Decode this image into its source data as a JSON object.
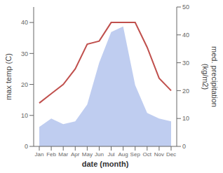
{
  "chart_data": {
    "type": "line",
    "categories": [
      "Jan",
      "Feb",
      "Mar",
      "Apr",
      "May",
      "Jun",
      "Jul",
      "Aug",
      "Sep",
      "Oct",
      "Nov",
      "Dec"
    ],
    "xlabel": "date (month)",
    "ylabel": "max temp (C)",
    "y2label": "med. precipitation\n(kg/m2)",
    "series": [
      {
        "type": "area",
        "axis": "y2",
        "color": "#b8c8ee",
        "values": [
          7,
          10,
          8,
          9,
          15,
          30,
          41,
          43,
          22,
          12,
          10,
          9
        ]
      },
      {
        "type": "line",
        "axis": "y",
        "color": "#c0504d",
        "values": [
          14,
          17,
          20,
          25,
          33,
          34,
          40,
          40,
          40,
          32,
          22,
          18
        ]
      }
    ],
    "ylim": [
      0,
      45
    ],
    "yticks": [
      0,
      10,
      20,
      30,
      40
    ],
    "y2lim": [
      0,
      50
    ],
    "y2ticks": [
      0,
      10,
      20,
      30,
      40,
      50
    ],
    "grid": false
  }
}
